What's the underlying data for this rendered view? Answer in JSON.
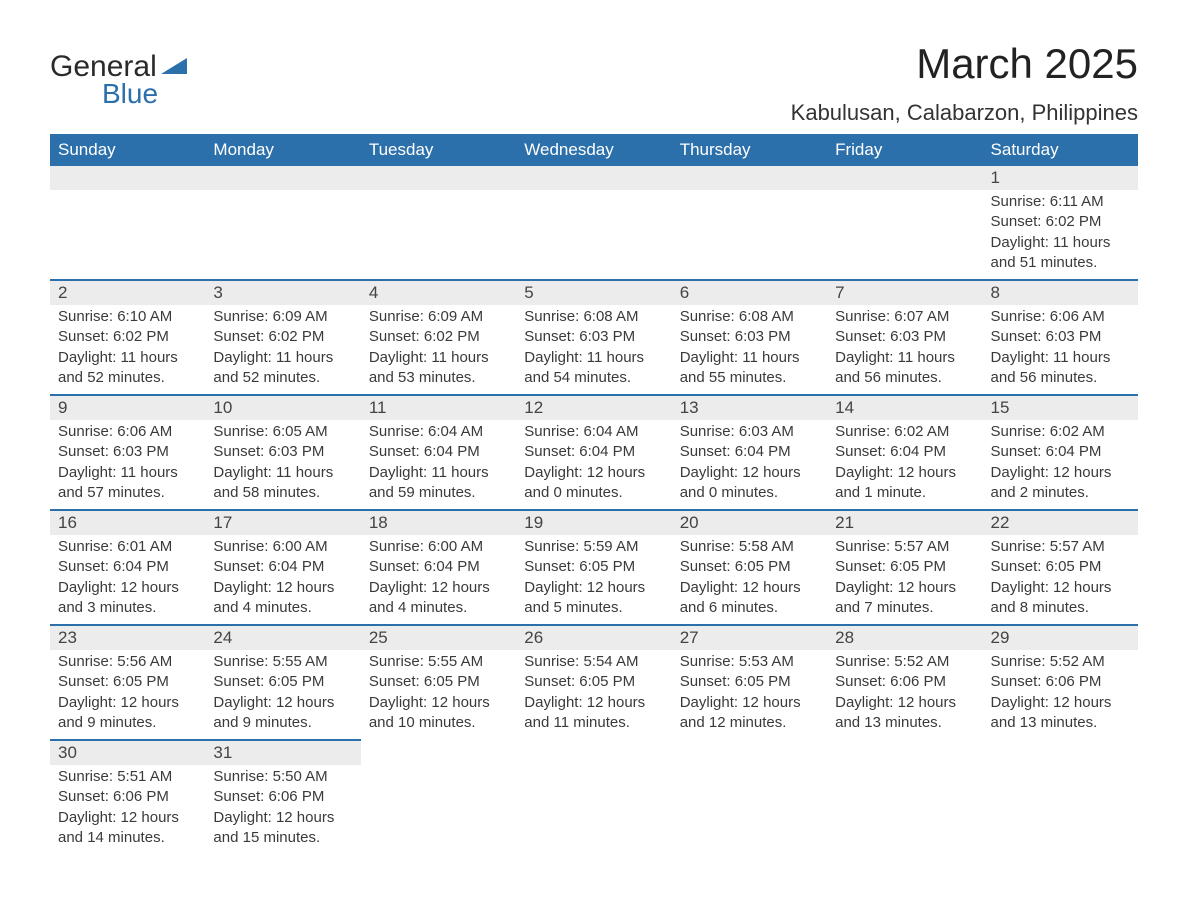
{
  "brand": {
    "name_general": "General",
    "name_blue": "Blue",
    "flag_color": "#2b6fab"
  },
  "title": {
    "month": "March 2025",
    "location": "Kabulusan, Calabarzon, Philippines"
  },
  "colors": {
    "header_bg": "#2b6fab",
    "header_text": "#ffffff",
    "daynum_bg": "#ececec",
    "row_border": "#2b6fab",
    "body_text": "#3a3a3a",
    "page_bg": "#ffffff"
  },
  "font": {
    "family": "Arial",
    "title_size_pt": 32,
    "location_size_pt": 17,
    "header_size_pt": 13,
    "body_size_pt": 11
  },
  "weekdays": [
    "Sunday",
    "Monday",
    "Tuesday",
    "Wednesday",
    "Thursday",
    "Friday",
    "Saturday"
  ],
  "weeks": [
    [
      null,
      null,
      null,
      null,
      null,
      null,
      {
        "n": "1",
        "sunrise": "6:11 AM",
        "sunset": "6:02 PM",
        "daylight": "11 hours and 51 minutes."
      }
    ],
    [
      {
        "n": "2",
        "sunrise": "6:10 AM",
        "sunset": "6:02 PM",
        "daylight": "11 hours and 52 minutes."
      },
      {
        "n": "3",
        "sunrise": "6:09 AM",
        "sunset": "6:02 PM",
        "daylight": "11 hours and 52 minutes."
      },
      {
        "n": "4",
        "sunrise": "6:09 AM",
        "sunset": "6:02 PM",
        "daylight": "11 hours and 53 minutes."
      },
      {
        "n": "5",
        "sunrise": "6:08 AM",
        "sunset": "6:03 PM",
        "daylight": "11 hours and 54 minutes."
      },
      {
        "n": "6",
        "sunrise": "6:08 AM",
        "sunset": "6:03 PM",
        "daylight": "11 hours and 55 minutes."
      },
      {
        "n": "7",
        "sunrise": "6:07 AM",
        "sunset": "6:03 PM",
        "daylight": "11 hours and 56 minutes."
      },
      {
        "n": "8",
        "sunrise": "6:06 AM",
        "sunset": "6:03 PM",
        "daylight": "11 hours and 56 minutes."
      }
    ],
    [
      {
        "n": "9",
        "sunrise": "6:06 AM",
        "sunset": "6:03 PM",
        "daylight": "11 hours and 57 minutes."
      },
      {
        "n": "10",
        "sunrise": "6:05 AM",
        "sunset": "6:03 PM",
        "daylight": "11 hours and 58 minutes."
      },
      {
        "n": "11",
        "sunrise": "6:04 AM",
        "sunset": "6:04 PM",
        "daylight": "11 hours and 59 minutes."
      },
      {
        "n": "12",
        "sunrise": "6:04 AM",
        "sunset": "6:04 PM",
        "daylight": "12 hours and 0 minutes."
      },
      {
        "n": "13",
        "sunrise": "6:03 AM",
        "sunset": "6:04 PM",
        "daylight": "12 hours and 0 minutes."
      },
      {
        "n": "14",
        "sunrise": "6:02 AM",
        "sunset": "6:04 PM",
        "daylight": "12 hours and 1 minute."
      },
      {
        "n": "15",
        "sunrise": "6:02 AM",
        "sunset": "6:04 PM",
        "daylight": "12 hours and 2 minutes."
      }
    ],
    [
      {
        "n": "16",
        "sunrise": "6:01 AM",
        "sunset": "6:04 PM",
        "daylight": "12 hours and 3 minutes."
      },
      {
        "n": "17",
        "sunrise": "6:00 AM",
        "sunset": "6:04 PM",
        "daylight": "12 hours and 4 minutes."
      },
      {
        "n": "18",
        "sunrise": "6:00 AM",
        "sunset": "6:04 PM",
        "daylight": "12 hours and 4 minutes."
      },
      {
        "n": "19",
        "sunrise": "5:59 AM",
        "sunset": "6:05 PM",
        "daylight": "12 hours and 5 minutes."
      },
      {
        "n": "20",
        "sunrise": "5:58 AM",
        "sunset": "6:05 PM",
        "daylight": "12 hours and 6 minutes."
      },
      {
        "n": "21",
        "sunrise": "5:57 AM",
        "sunset": "6:05 PM",
        "daylight": "12 hours and 7 minutes."
      },
      {
        "n": "22",
        "sunrise": "5:57 AM",
        "sunset": "6:05 PM",
        "daylight": "12 hours and 8 minutes."
      }
    ],
    [
      {
        "n": "23",
        "sunrise": "5:56 AM",
        "sunset": "6:05 PM",
        "daylight": "12 hours and 9 minutes."
      },
      {
        "n": "24",
        "sunrise": "5:55 AM",
        "sunset": "6:05 PM",
        "daylight": "12 hours and 9 minutes."
      },
      {
        "n": "25",
        "sunrise": "5:55 AM",
        "sunset": "6:05 PM",
        "daylight": "12 hours and 10 minutes."
      },
      {
        "n": "26",
        "sunrise": "5:54 AM",
        "sunset": "6:05 PM",
        "daylight": "12 hours and 11 minutes."
      },
      {
        "n": "27",
        "sunrise": "5:53 AM",
        "sunset": "6:05 PM",
        "daylight": "12 hours and 12 minutes."
      },
      {
        "n": "28",
        "sunrise": "5:52 AM",
        "sunset": "6:06 PM",
        "daylight": "12 hours and 13 minutes."
      },
      {
        "n": "29",
        "sunrise": "5:52 AM",
        "sunset": "6:06 PM",
        "daylight": "12 hours and 13 minutes."
      }
    ],
    [
      {
        "n": "30",
        "sunrise": "5:51 AM",
        "sunset": "6:06 PM",
        "daylight": "12 hours and 14 minutes."
      },
      {
        "n": "31",
        "sunrise": "5:50 AM",
        "sunset": "6:06 PM",
        "daylight": "12 hours and 15 minutes."
      },
      null,
      null,
      null,
      null,
      null
    ]
  ],
  "labels": {
    "sunrise": "Sunrise: ",
    "sunset": "Sunset: ",
    "daylight": "Daylight: "
  }
}
